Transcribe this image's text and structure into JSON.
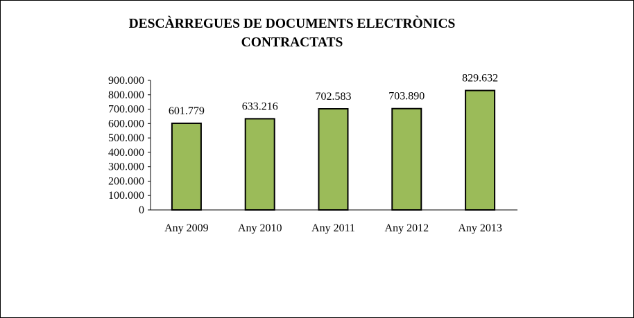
{
  "chart_data": {
    "type": "bar",
    "title_lines": [
      "DESCÀRREGUES DE DOCUMENTS ELECTRÒNICS",
      "CONTRACTATS"
    ],
    "categories": [
      "Any 2009",
      "Any 2010",
      "Any 2011",
      "Any 2012",
      "Any 2013"
    ],
    "values": [
      601779,
      633216,
      702583,
      703890,
      829632
    ],
    "data_labels": [
      "601.779",
      "633.216",
      "702.583",
      "703.890",
      "829.632"
    ],
    "ylim": [
      0,
      900000
    ],
    "yticks": [
      0,
      100000,
      200000,
      300000,
      400000,
      500000,
      600000,
      700000,
      800000,
      900000
    ],
    "ytick_labels": [
      "0",
      "100.000",
      "200.000",
      "300.000",
      "400.000",
      "500.000",
      "600.000",
      "700.000",
      "800.000",
      "900.000"
    ],
    "grid": false,
    "legend": "none",
    "bar_color": "#9BBB59",
    "bar_border_color": "#000000"
  }
}
